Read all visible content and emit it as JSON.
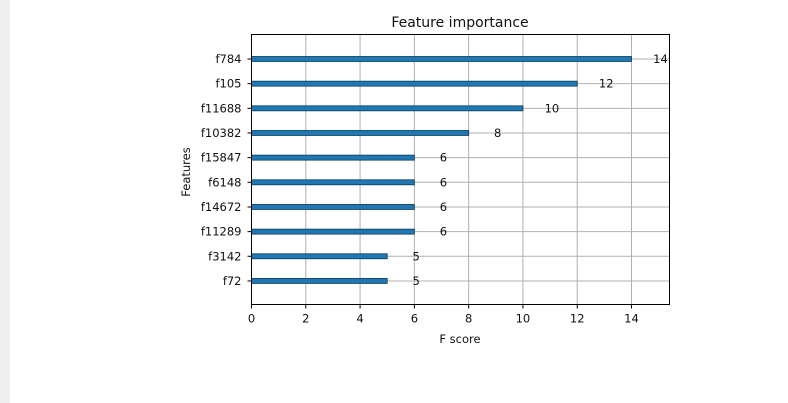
{
  "chart_data": {
    "type": "bar",
    "orientation": "horizontal",
    "title": "Feature importance",
    "xlabel": "F score",
    "ylabel": "Features",
    "categories": [
      "f784",
      "f105",
      "f11688",
      "f10382",
      "f15847",
      "f6148",
      "f14672",
      "f11289",
      "f3142",
      "f72"
    ],
    "values": [
      14,
      12,
      10,
      8,
      6,
      6,
      6,
      6,
      5,
      5
    ],
    "data_labels": [
      "14",
      "12",
      "10",
      "8",
      "6",
      "6",
      "6",
      "6",
      "5",
      "5"
    ],
    "xlim": [
      0,
      15.4
    ],
    "xticks": [
      "0",
      "2",
      "4",
      "6",
      "8",
      "10",
      "12",
      "14"
    ],
    "grid": true,
    "bar_color": "#1f77b4"
  }
}
